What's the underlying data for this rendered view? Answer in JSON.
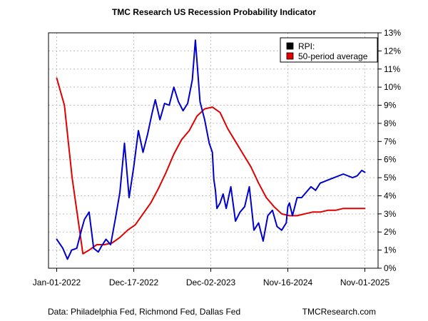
{
  "colors": {
    "rpi": "#0000cc",
    "avg": "#e00000",
    "grid": "#bfbfbf",
    "frame": "#000000",
    "background": "#ffffff"
  },
  "footer": {
    "source": "Data: Philadelphia Fed, Richmond Fed, Dallas Fed",
    "brand": "TMCResearch.com"
  },
  "chart_data": {
    "type": "line",
    "title": "TMC Research US Recession Probability Indicator",
    "xlabel": "",
    "ylabel": "",
    "x_range": [
      "2022-01-01",
      "2025-11-01"
    ],
    "ylim": [
      0,
      13
    ],
    "yaxis_position": "right",
    "grid": true,
    "legend_position": "top-right",
    "x_tick_labels": [
      "Jan-01-2022",
      "Dec-17-2022",
      "Dec-02-2023",
      "Nov-16-2024",
      "Nov-01-2025"
    ],
    "y_ticks": [
      0,
      1,
      2,
      3,
      4,
      5,
      6,
      7,
      8,
      9,
      10,
      11,
      12,
      13
    ],
    "y_tick_labels": [
      "0%",
      "1%",
      "2%",
      "3%",
      "4%",
      "5%",
      "6%",
      "7%",
      "8%",
      "9%",
      "10%",
      "11%",
      "12%",
      "13%"
    ],
    "series": [
      {
        "name": "RPI:",
        "color": "#0000cc",
        "x": [
          "2022-01-01",
          "2022-01-29",
          "2022-02-19",
          "2022-03-10",
          "2022-04-02",
          "2022-04-23",
          "2022-05-07",
          "2022-05-28",
          "2022-06-18",
          "2022-07-09",
          "2022-07-23",
          "2022-08-13",
          "2022-09-03",
          "2022-09-24",
          "2022-10-15",
          "2022-11-05",
          "2022-11-26",
          "2022-12-17",
          "2023-01-07",
          "2023-01-28",
          "2023-02-18",
          "2023-03-11",
          "2023-03-25",
          "2023-04-15",
          "2023-05-06",
          "2023-05-27",
          "2023-06-17",
          "2023-07-08",
          "2023-07-29",
          "2023-08-19",
          "2023-09-09",
          "2023-09-23",
          "2023-10-14",
          "2023-11-04",
          "2023-11-25",
          "2023-12-09",
          "2023-12-16",
          "2023-12-23",
          "2023-12-30",
          "2024-01-13",
          "2024-01-27",
          "2024-02-10",
          "2024-03-02",
          "2024-03-23",
          "2024-04-13",
          "2024-05-04",
          "2024-05-25",
          "2024-06-15",
          "2024-07-06",
          "2024-07-27",
          "2024-08-17",
          "2024-09-07",
          "2024-09-28",
          "2024-10-19",
          "2024-11-09",
          "2024-11-16",
          "2024-11-23",
          "2024-12-07",
          "2024-12-28",
          "2025-01-18",
          "2025-02-08",
          "2025-03-01",
          "2025-03-22",
          "2025-04-12",
          "2025-05-03",
          "2025-05-24",
          "2025-06-14",
          "2025-07-05",
          "2025-07-26",
          "2025-08-16",
          "2025-09-06",
          "2025-09-27",
          "2025-10-18",
          "2025-11-01"
        ],
        "values": [
          1.6,
          1.1,
          0.5,
          1.0,
          1.1,
          2.1,
          2.7,
          3.1,
          1.1,
          0.9,
          1.2,
          1.6,
          1.3,
          2.7,
          4.2,
          6.9,
          3.9,
          5.6,
          7.6,
          6.4,
          7.4,
          8.6,
          9.3,
          8.2,
          9.1,
          9.0,
          10.0,
          9.2,
          8.7,
          9.1,
          10.4,
          12.6,
          9.2,
          8.2,
          6.9,
          6.4,
          4.9,
          4.3,
          3.3,
          3.6,
          4.1,
          3.3,
          4.5,
          2.6,
          3.1,
          3.4,
          4.5,
          2.1,
          2.5,
          1.5,
          2.9,
          3.2,
          2.3,
          2.1,
          2.5,
          3.4,
          3.6,
          2.9,
          3.9,
          3.9,
          4.2,
          4.5,
          4.3,
          4.7,
          4.8,
          4.9,
          5.0,
          5.1,
          5.2,
          5.1,
          5.0,
          5.1,
          5.4,
          5.3
        ]
      },
      {
        "name": "50-period average",
        "color": "#e00000",
        "x": [
          "2022-01-01",
          "2022-02-05",
          "2022-03-12",
          "2022-04-16",
          "2022-04-30",
          "2022-05-28",
          "2022-07-02",
          "2022-08-06",
          "2022-09-10",
          "2022-10-15",
          "2022-11-19",
          "2022-12-24",
          "2023-01-28",
          "2023-03-04",
          "2023-04-08",
          "2023-05-13",
          "2023-06-17",
          "2023-07-22",
          "2023-08-26",
          "2023-09-30",
          "2023-11-04",
          "2023-12-09",
          "2024-01-13",
          "2024-02-17",
          "2024-03-23",
          "2024-04-27",
          "2024-06-01",
          "2024-07-06",
          "2024-08-10",
          "2024-09-14",
          "2024-10-19",
          "2024-11-23",
          "2024-12-28",
          "2025-02-01",
          "2025-03-08",
          "2025-04-12",
          "2025-05-17",
          "2025-06-21",
          "2025-07-26",
          "2025-08-30",
          "2025-10-04",
          "2025-11-01"
        ],
        "values": [
          10.5,
          9.0,
          5.0,
          2.0,
          0.8,
          1.0,
          1.3,
          1.3,
          1.4,
          1.7,
          2.1,
          2.4,
          3.0,
          3.6,
          4.4,
          5.3,
          6.3,
          7.1,
          7.6,
          8.4,
          8.8,
          8.9,
          8.6,
          7.7,
          7.0,
          6.3,
          5.6,
          4.7,
          3.9,
          3.4,
          3.0,
          2.9,
          2.9,
          3.0,
          3.1,
          3.1,
          3.2,
          3.2,
          3.3,
          3.3,
          3.3,
          3.3
        ]
      }
    ]
  }
}
